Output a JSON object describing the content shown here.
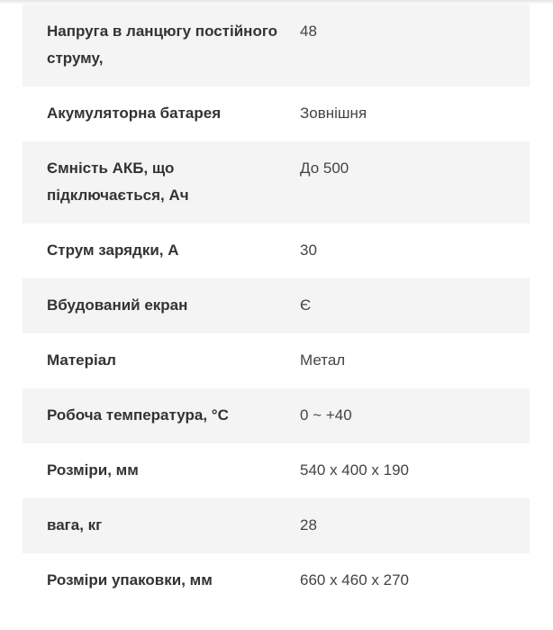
{
  "specs": [
    {
      "label": "Напруга в ланцюгу постійного струму,",
      "value": "48"
    },
    {
      "label": "Акумуляторна батарея",
      "value": "Зовнішня"
    },
    {
      "label": "Ємність АКБ, що підключається, Ач",
      "value": "До 500"
    },
    {
      "label": "Струм зарядки, А",
      "value": "30"
    },
    {
      "label": "Вбудований екран",
      "value": "Є"
    },
    {
      "label": "Матеріал",
      "value": "Метал"
    },
    {
      "label": "Робоча температура, °C",
      "value": "0 ~ +40"
    },
    {
      "label": "Розміри, мм",
      "value": "540 x 400 x 190"
    },
    {
      "label": "вага, кг",
      "value": "28"
    },
    {
      "label": "Розміри упаковки, мм",
      "value": "660 x 460 x 270"
    }
  ]
}
